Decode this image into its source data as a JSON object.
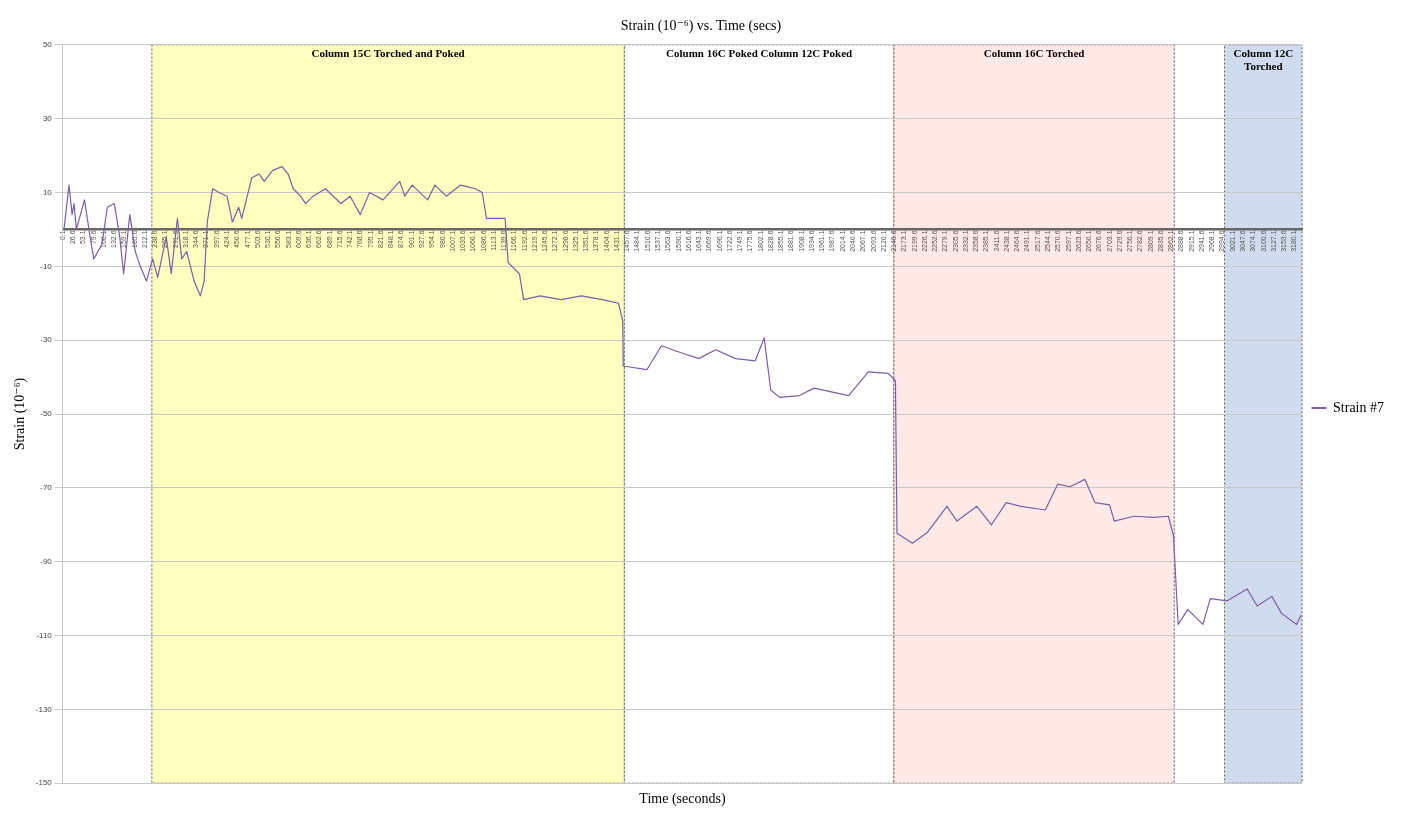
{
  "chart_data": {
    "type": "line",
    "title": "Strain (10⁻⁶) vs. Time (secs)",
    "xlabel": "Time (seconds)",
    "ylabel": "Strain (10⁻⁶)",
    "xlim": [
      0,
      3200
    ],
    "xticks": [
      0.1,
      26.6,
      53.1,
      79.6,
      106.1,
      132.6,
      159.1,
      185.6,
      212.1,
      238.6,
      265.1,
      291.6,
      318.1,
      344.6,
      371.1,
      397.6,
      424.1,
      450.6,
      477.1,
      503.6,
      530.1,
      556.6,
      583.1,
      609.6,
      636.1,
      662.6,
      689.1,
      715.6,
      742.1,
      768.6,
      795.1,
      821.6,
      848.1,
      874.6,
      901.1,
      927.6,
      954.1,
      980.6,
      1007.1,
      1033.6,
      1060.1,
      1086.6,
      1113.1,
      1139.6,
      1166.1,
      1192.6,
      1219.1,
      1245.6,
      1272.1,
      1298.6,
      1325.1,
      1351.6,
      1378.1,
      1404.6,
      1431.1,
      1457.6,
      1484.1,
      1510.6,
      1537.1,
      1563.6,
      1590.1,
      1616.6,
      1643.1,
      1669.6,
      1696.1,
      1722.6,
      1749.1,
      1775.6,
      1802.1,
      1828.6,
      1855.1,
      1881.6,
      1908.1,
      1934.6,
      1961.1,
      1987.6,
      2014.1,
      2040.6,
      2067.1,
      2093.6,
      2120.1,
      2146.6,
      2173.1,
      2199.6,
      2226.1,
      2252.6,
      2279.1,
      2305.6,
      2332.1,
      2358.6,
      2385.1,
      2411.6,
      2438.1,
      2464.6,
      2491.1,
      2517.6,
      2544.1,
      2570.6,
      2597.1,
      2623.6,
      2650.1,
      2676.6,
      2703.1,
      2729.6,
      2756.1,
      2782.6,
      2809.1,
      2835.6,
      2862.1,
      2888.6,
      2915.1,
      2941.6,
      2968.1,
      2994.6,
      3021.1,
      3047.6,
      3074.1,
      3100.6,
      3127.1,
      3153.6,
      3180.1
    ],
    "ylim": [
      -150,
      50
    ],
    "yticks": [
      -150,
      -130,
      -110,
      -90,
      -70,
      -50,
      -30,
      -10,
      10,
      30,
      50
    ],
    "grid": "y",
    "legend": "right",
    "marker": "none",
    "bands": [
      {
        "axis": "x",
        "from": 230,
        "to": 1450,
        "label": "Column 15C Torched and Poked",
        "color": "#ffffc0"
      },
      {
        "axis": "x",
        "from": 1450,
        "to": 2146,
        "label": "Column 16C Poked Column 12C Poked",
        "color": "#ffffff"
      },
      {
        "axis": "x",
        "from": 2146,
        "to": 2870,
        "label": "Column 16C Torched",
        "color": "#ffe9e6"
      },
      {
        "axis": "x",
        "from": 3000,
        "to": 3200,
        "label": "Column 12C Torched",
        "color": "#d0dced"
      }
    ],
    "series": [
      {
        "name": "Strain #7",
        "color": "#7b5ea7",
        "x": [
          3,
          16,
          24,
          29,
          35,
          56,
          72,
          80,
          101,
          115,
          133,
          147,
          157,
          173,
          187,
          200,
          216,
          232,
          245,
          267,
          280,
          296,
          307,
          320,
          339,
          355,
          365,
          373,
          387,
          403,
          424,
          438,
          454,
          462,
          488,
          507,
          520,
          542,
          566,
          582,
          595,
          614,
          627,
          646,
          678,
          718,
          742,
          768,
          792,
          827,
          870,
          883,
          902,
          942,
          961,
          990,
          1027,
          1065,
          1083,
          1094,
          1142,
          1150,
          1179,
          1190,
          1233,
          1286,
          1339,
          1393,
          1435,
          1446,
          1447,
          1508,
          1546,
          1585,
          1642,
          1686,
          1737,
          1788,
          1811,
          1828,
          1851,
          1902,
          1940,
          2029,
          2080,
          2131,
          2150,
          2154,
          2194,
          2233,
          2283,
          2309,
          2360,
          2398,
          2436,
          2474,
          2537,
          2569,
          2601,
          2639,
          2665,
          2703,
          2715,
          2766,
          2817,
          2855,
          2868,
          2880,
          2905,
          2944,
          2963,
          3007,
          3058,
          3084,
          3122,
          3147,
          3186,
          3197
        ],
        "values": [
          0,
          12,
          4,
          7,
          0,
          8,
          -3,
          -8,
          -4,
          6,
          7,
          -2,
          -12,
          4,
          -6,
          -10,
          -14,
          -8,
          -13,
          -2,
          -12,
          3,
          -8,
          -6,
          -14,
          -18,
          -14,
          2,
          11,
          10,
          9,
          2,
          6,
          3,
          14,
          15,
          13,
          16,
          17,
          15,
          11,
          9,
          7,
          9,
          11,
          7,
          9,
          4,
          10,
          8,
          13,
          9,
          12,
          8,
          12,
          9,
          12,
          11,
          10,
          3,
          3,
          -9,
          -12,
          -19,
          -18,
          -19,
          -18,
          -19,
          -20,
          -25,
          -37,
          -38,
          -31.5,
          -33,
          -35,
          -32.6,
          -35,
          -35.6,
          -29.4,
          -43.5,
          -45.5,
          -45,
          -43,
          -45,
          -38.6,
          -39,
          -41,
          -82.3,
          -85,
          -82,
          -75,
          -79,
          -75,
          -80,
          -74,
          -75,
          -76,
          -69,
          -69.7,
          -67.7,
          -74,
          -74.6,
          -79,
          -77.7,
          -78,
          -77.7,
          -83,
          -107,
          -103,
          -107,
          -100,
          -100.6,
          -97.4,
          -102,
          -99.4,
          -104,
          -107,
          -104.5
        ]
      }
    ]
  }
}
